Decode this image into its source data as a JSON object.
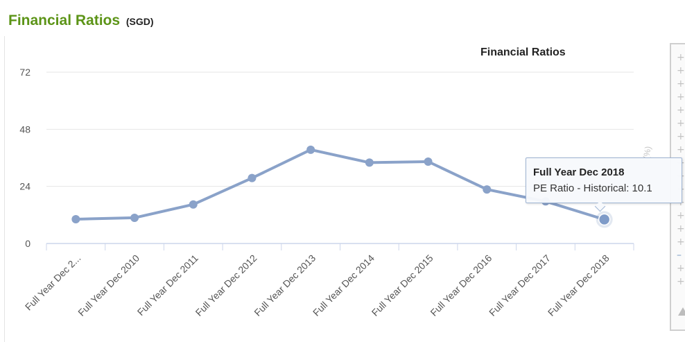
{
  "header": {
    "title": "Financial Ratios",
    "currency": "(SGD)"
  },
  "side_panel": {
    "percent_label": "(%)"
  },
  "tooltip": {
    "title": "Full Year Dec 2018",
    "series_label": "PE Ratio - Historical: 10.1"
  },
  "colors": {
    "title_green": "#5c9417",
    "series": "#8aa2c9",
    "grid": "#e6e6e6",
    "axis": "#ccd6eb"
  },
  "chart_data": {
    "type": "line",
    "title": "Financial Ratios",
    "xlabel": "",
    "ylabel": "",
    "categories": [
      "Full Year Dec 2...",
      "Full Year Dec 2010",
      "Full Year Dec 2011",
      "Full Year Dec 2012",
      "Full Year Dec 2013",
      "Full Year Dec 2014",
      "Full Year Dec 2015",
      "Full Year Dec 2016",
      "Full Year Dec 2017",
      "Full Year Dec 2018"
    ],
    "series": [
      {
        "name": "PE Ratio - Historical",
        "values": [
          10.2,
          10.8,
          16.4,
          27.5,
          39.4,
          34.0,
          34.4,
          22.7,
          17.7,
          10.1
        ]
      }
    ],
    "yticks": [
      0,
      24,
      48,
      72
    ],
    "ylim": [
      0,
      72
    ],
    "grid": true,
    "highlighted_index": 9
  }
}
